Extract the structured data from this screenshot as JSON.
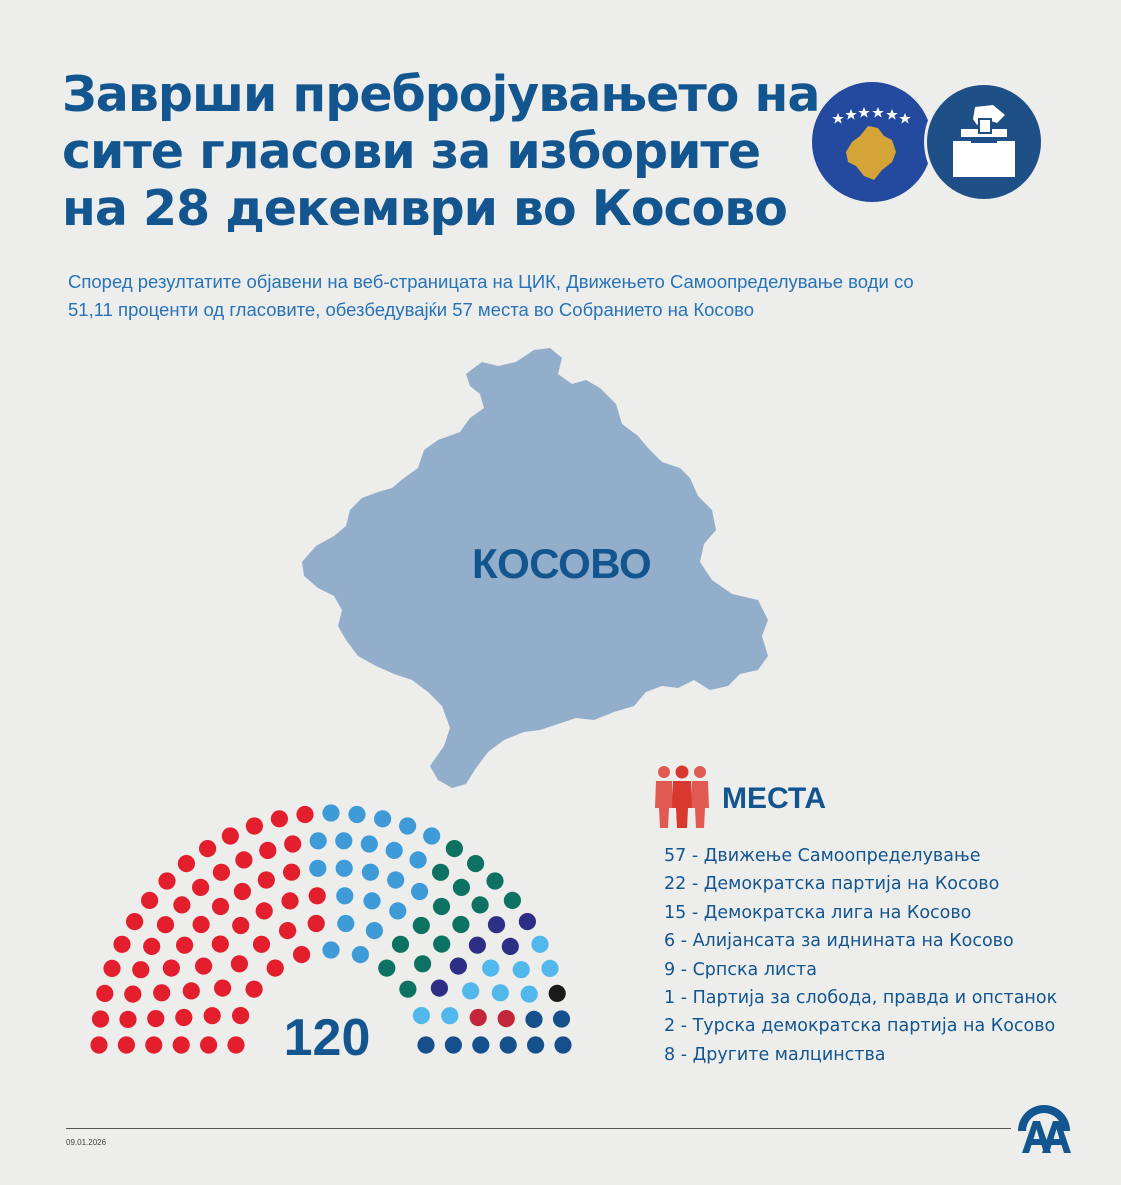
{
  "header": {
    "title_lines": [
      "Заврши пребројувањето на",
      "сите гласови за изборите",
      "на 28 декември во Косово"
    ],
    "subtitle_lines": [
      "Според резултатите објавени на веб-страницата на ЦИК, Движењето Самоопределување води со",
      "51,11 проценти од гласовите, обезбедувајќи 57 места во Собранието на Косово"
    ],
    "icons": [
      "kosovo-flag-icon",
      "ballot-box-icon"
    ]
  },
  "map": {
    "label": "КОСОВО",
    "icon": "kosovo-map"
  },
  "chart_data": {
    "type": "hemicycle",
    "total_seats": 120,
    "total_label": "120",
    "series": [
      {
        "name": "Движење Самоопределување",
        "value": 57,
        "color": "#e31e2d"
      },
      {
        "name": "Демократска партија на Косово",
        "value": 22,
        "color": "#3f9ad8"
      },
      {
        "name": "Демократска лига на Косово",
        "value": 15,
        "color": "#0e7262"
      },
      {
        "name": "Алијансата за иднината на Косово",
        "value": 6,
        "color": "#2d2f86"
      },
      {
        "name": "Српска листа",
        "value": 9,
        "color": "#52b8ec"
      },
      {
        "name": "Партија за слобода, правда и опстанок",
        "value": 1,
        "color": "#1a1a1a"
      },
      {
        "name": "Турска демократска партија на Косово",
        "value": 2,
        "color": "#c3253a"
      },
      {
        "name": "Другите малцинства",
        "value": 8,
        "color": "#15508d"
      }
    ],
    "legend_title": "МЕСТА"
  },
  "legend": {
    "title": "МЕСТА",
    "icon": "people-icon",
    "items": [
      "57 - Движење Самоопределување",
      "22 - Демократска партија на Косово",
      "15 - Демократска лига на Косово",
      "6 - Алијансата за иднината на Косово",
      "9 - Српска листа",
      "1 - Партија за слобода, правда и опстанок",
      "2 - Турска демократска партија на Косово",
      "8 - Другите малцинства"
    ]
  },
  "footer": {
    "date": "09.01.2026",
    "logo": "aa-logo"
  }
}
